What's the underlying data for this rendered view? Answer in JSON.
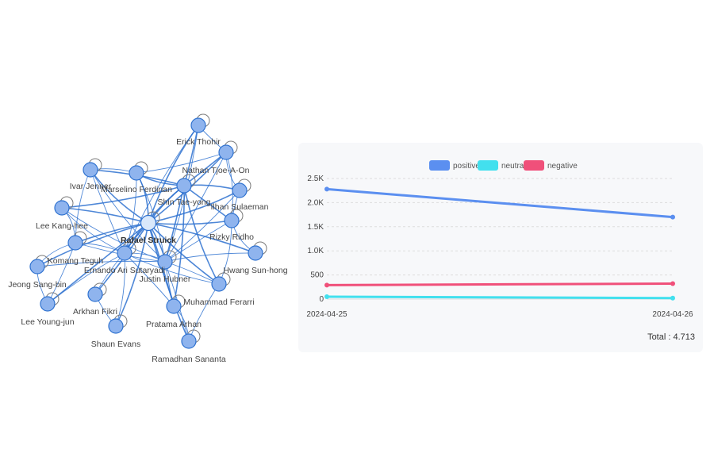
{
  "network": {
    "nodes": [
      "Erick Thohir",
      "Nathan Tjoe-A-On",
      "Marselino Ferdinan",
      "Ivar Jenner",
      "Shin Tae-yong",
      "Ilhan Sulaeman",
      "Lee Kang-hee",
      "Rafael Struick",
      "Rizky Ridho",
      "Komang Teguh",
      "Ernando Ari Sutaryadi",
      "Hwang Sun-hong",
      "Justin Hubner",
      "Jeong Sang-bin",
      "Muhammad Ferarri",
      "Arkhan Fikri",
      "Lee Young-jun",
      "Pratama Arhan",
      "Shaun Evans",
      "Ramadhan Sananta"
    ],
    "center_node": "Rafael Struick",
    "node_color": "#8fb4ee",
    "edge_color": "#2f72d0"
  },
  "chart_data": {
    "type": "line",
    "categories": [
      "2024-04-25",
      "2024-04-26"
    ],
    "series": [
      {
        "name": "positive",
        "values": [
          2280,
          1700
        ],
        "color": "#5b8ff0"
      },
      {
        "name": "neutral",
        "values": [
          50,
          20
        ],
        "color": "#42e0ee"
      },
      {
        "name": "negative",
        "values": [
          290,
          320
        ],
        "color": "#f0507a"
      }
    ],
    "y_ticks": [
      "0",
      "500",
      "1.0K",
      "1.5K",
      "2.0K",
      "2.5K"
    ],
    "y_tick_values": [
      0,
      500,
      1000,
      1500,
      2000,
      2500
    ],
    "ylim": [
      0,
      2500
    ],
    "legend_position": "top-center",
    "grid": true,
    "total_label": "Total : 4.713"
  }
}
